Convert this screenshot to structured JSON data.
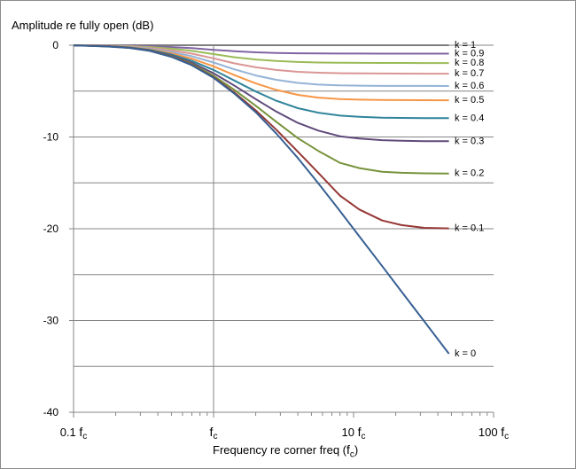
{
  "chart_data": {
    "type": "line",
    "title": "",
    "ylabel": "Amplitude re fully open (dB)",
    "xlabel_main": "Frequency re corner freq (",
    "xlabel_sym": "f",
    "xlabel_sub": "c",
    "xlabel_end": ")",
    "x_scale": "log",
    "xlim": [
      0.1,
      100
    ],
    "ylim": [
      -40,
      0
    ],
    "yticks": [
      0,
      -10,
      -20,
      -30,
      -40
    ],
    "yticklabels": [
      "0",
      "-10",
      "-20",
      "-30",
      "-40"
    ],
    "xticks": [
      {
        "value": 0.1,
        "pre": "0.1 ",
        "sym": "f",
        "sub": "c"
      },
      {
        "value": 1,
        "pre": "",
        "sym": "f",
        "sub": "c"
      },
      {
        "value": 10,
        "pre": "10 ",
        "sym": "f",
        "sub": "c"
      },
      {
        "value": 100,
        "pre": "100 ",
        "sym": "f",
        "sub": "c"
      }
    ],
    "grid": "horizontal every 5 dB; vertical at 1 fc",
    "x_eval": [
      0.1,
      0.13,
      0.18,
      0.25,
      0.35,
      0.5,
      0.7,
      1,
      1.4,
      2,
      2.8,
      4,
      5.6,
      8,
      11,
      16,
      22,
      32,
      48
    ],
    "series": [
      {
        "name": "k = 1",
        "k": 1,
        "color": "#7f7f7f",
        "values": [
          0,
          0,
          0,
          0,
          0,
          0,
          0,
          0,
          0,
          0,
          0,
          0,
          0,
          0,
          0,
          0,
          0,
          0,
          0
        ]
      },
      {
        "name": "k = 0.9",
        "k": 0.9,
        "color": "#8064a2",
        "values": [
          -0.01,
          -0.02,
          -0.03,
          -0.05,
          -0.1,
          -0.2,
          -0.32,
          -0.5,
          -0.65,
          -0.77,
          -0.84,
          -0.88,
          -0.9,
          -0.91,
          -0.91,
          -0.92,
          -0.92,
          -0.92,
          -0.92
        ]
      },
      {
        "name": "k = 0.8",
        "k": 0.8,
        "color": "#9bbb59",
        "values": [
          -0.01,
          -0.03,
          -0.06,
          -0.1,
          -0.2,
          -0.38,
          -0.62,
          -0.97,
          -1.3,
          -1.56,
          -1.72,
          -1.83,
          -1.88,
          -1.91,
          -1.92,
          -1.93,
          -1.93,
          -1.94,
          -1.94
        ]
      },
      {
        "name": "k = 0.7",
        "k": 0.7,
        "color": "#d99694",
        "values": [
          -0.01,
          -0.03,
          -0.08,
          -0.14,
          -0.29,
          -0.56,
          -0.92,
          -1.43,
          -1.97,
          -2.41,
          -2.7,
          -2.9,
          -3.0,
          -3.05,
          -3.07,
          -3.08,
          -3.09,
          -3.1,
          -3.1
        ]
      },
      {
        "name": "k = 0.6",
        "k": 0.6,
        "color": "#95b3d7",
        "values": [
          -0.01,
          -0.04,
          -0.09,
          -0.18,
          -0.37,
          -0.73,
          -1.2,
          -1.88,
          -2.62,
          -3.29,
          -3.77,
          -4.11,
          -4.29,
          -4.38,
          -4.41,
          -4.43,
          -4.43,
          -4.43,
          -4.44
        ]
      },
      {
        "name": "k = 0.5",
        "k": 0.5,
        "color": "#f79646",
        "values": [
          -0.01,
          -0.05,
          -0.11,
          -0.21,
          -0.44,
          -0.88,
          -1.47,
          -2.3,
          -3.25,
          -4.16,
          -4.87,
          -5.41,
          -5.71,
          -5.87,
          -5.93,
          -5.97,
          -5.98,
          -5.99,
          -6.0
        ]
      },
      {
        "name": "k = 0.4",
        "k": 0.4,
        "color": "#31849b",
        "values": [
          -0.01,
          -0.05,
          -0.12,
          -0.24,
          -0.5,
          -1.01,
          -1.7,
          -2.7,
          -3.84,
          -5.04,
          -6.05,
          -6.86,
          -7.35,
          -7.67,
          -7.8,
          -7.89,
          -7.92,
          -7.94,
          -7.95
        ]
      },
      {
        "name": "k = 0.3",
        "k": 0.3,
        "color": "#604a7b",
        "values": [
          -0.01,
          -0.06,
          -0.13,
          -0.26,
          -0.55,
          -1.12,
          -1.9,
          -3.05,
          -4.38,
          -5.87,
          -7.23,
          -8.46,
          -9.3,
          -9.92,
          -10.16,
          -10.35,
          -10.42,
          -10.45,
          -10.46
        ]
      },
      {
        "name": "k = 0.2",
        "k": 0.2,
        "color": "#77933c",
        "values": [
          -0.01,
          -0.06,
          -0.14,
          -0.28,
          -0.59,
          -1.2,
          -2.05,
          -3.32,
          -4.84,
          -6.6,
          -8.34,
          -10.13,
          -11.52,
          -12.82,
          -13.39,
          -13.79,
          -13.9,
          -13.96,
          -13.98
        ]
      },
      {
        "name": "k = 0.1",
        "k": 0.1,
        "color": "#953735",
        "values": [
          -0.01,
          -0.06,
          -0.14,
          -0.29,
          -0.61,
          -1.25,
          -2.14,
          -3.5,
          -5.12,
          -7.1,
          -9.2,
          -11.6,
          -13.9,
          -16.4,
          -17.9,
          -19.1,
          -19.6,
          -19.9,
          -19.96
        ]
      },
      {
        "name": "k = 0",
        "k": 0,
        "color": "#376092",
        "values": [
          -0.02,
          -0.07,
          -0.15,
          -0.29,
          -0.62,
          -1.27,
          -2.18,
          -3.56,
          -5.25,
          -7.3,
          -9.61,
          -12.29,
          -15.05,
          -18.08,
          -20.83,
          -24.08,
          -26.85,
          -30.1,
          -33.62
        ]
      }
    ]
  }
}
